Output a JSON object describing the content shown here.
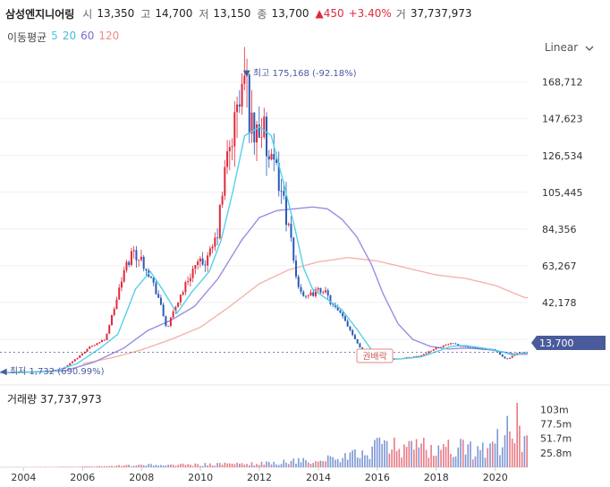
{
  "stock": {
    "name": "삼성엔지니어링",
    "open_label": "시",
    "open": "13,350",
    "high_label": "고",
    "high": "14,700",
    "low_label": "저",
    "low": "13,150",
    "close_label": "종",
    "close": "13,700",
    "change": "▲450",
    "change_pct": "+3.40%",
    "volume_label": "거",
    "volume": "37,737,973"
  },
  "ma": {
    "title": "이동평균",
    "items": [
      {
        "label": "5",
        "color": "#45c8e6"
      },
      {
        "label": "20",
        "color": "#4ab7d8"
      },
      {
        "label": "60",
        "color": "#7b6fd0"
      },
      {
        "label": "120",
        "color": "#f08a86"
      }
    ]
  },
  "scale_toggle": "Linear",
  "colors": {
    "up": "#e0293c",
    "down": "#2a5ab8",
    "ma20": "#55d0ea",
    "ma60": "#9b8de0",
    "ma120": "#f5b3ae",
    "accent": "#4a5b9c"
  },
  "annotations": {
    "high": "▼ 최고 175,168 (-92.18%)",
    "low": "◀ 최저 1,732 (690.99%)",
    "event": "권배락",
    "current": "13,700"
  },
  "volume_panel": {
    "title": "거래량 37,737,973"
  },
  "chart_data": {
    "type": "candlestick",
    "x_ticks": [
      "2004",
      "2006",
      "2008",
      "2010",
      "2012",
      "2014",
      "2016",
      "2018",
      "2020"
    ],
    "x_range": [
      2003.2,
      2021.1
    ],
    "y_ticks": [
      "168,712",
      "147,623",
      "126,534",
      "105,445",
      "84,356",
      "63,267",
      "42,178",
      "21,089"
    ],
    "y_range": [
      0,
      185000
    ],
    "vol_ticks": [
      "103m",
      "77.5m",
      "51.7m",
      "25.8m"
    ],
    "vol_range": [
      0,
      115000000
    ],
    "price_anchors": [
      [
        2003.2,
        1900
      ],
      [
        2004.0,
        2100
      ],
      [
        2004.8,
        2600
      ],
      [
        2005.4,
        4500
      ],
      [
        2005.9,
        11000
      ],
      [
        2006.3,
        17000
      ],
      [
        2006.8,
        21000
      ],
      [
        2007.1,
        38000
      ],
      [
        2007.45,
        60000
      ],
      [
        2007.75,
        72000
      ],
      [
        2008.2,
        63000
      ],
      [
        2008.6,
        46000
      ],
      [
        2008.9,
        27000
      ],
      [
        2009.3,
        44000
      ],
      [
        2009.8,
        62000
      ],
      [
        2010.3,
        67000
      ],
      [
        2010.6,
        80000
      ],
      [
        2010.9,
        120000
      ],
      [
        2011.2,
        145000
      ],
      [
        2011.55,
        172000
      ],
      [
        2011.8,
        140000
      ],
      [
        2012.1,
        145000
      ],
      [
        2012.4,
        120000
      ],
      [
        2012.7,
        114000
      ],
      [
        2013.0,
        88000
      ],
      [
        2013.3,
        55000
      ],
      [
        2013.6,
        44000
      ],
      [
        2013.9,
        48000
      ],
      [
        2014.2,
        50000
      ],
      [
        2014.5,
        41000
      ],
      [
        2014.9,
        33000
      ],
      [
        2015.3,
        21000
      ],
      [
        2015.6,
        12000
      ],
      [
        2016.0,
        10500
      ],
      [
        2016.5,
        9500
      ],
      [
        2017.0,
        10500
      ],
      [
        2017.5,
        11500
      ],
      [
        2018.0,
        16000
      ],
      [
        2018.5,
        18500
      ],
      [
        2019.0,
        17000
      ],
      [
        2019.5,
        15500
      ],
      [
        2020.0,
        15000
      ],
      [
        2020.4,
        9500
      ],
      [
        2020.8,
        13000
      ],
      [
        2021.0,
        13700
      ]
    ],
    "ma20_anchors": [
      [
        2003.2,
        1900
      ],
      [
        2005.0,
        2500
      ],
      [
        2005.8,
        7000
      ],
      [
        2006.6,
        16000
      ],
      [
        2007.2,
        24000
      ],
      [
        2007.8,
        50000
      ],
      [
        2008.3,
        60000
      ],
      [
        2008.7,
        50000
      ],
      [
        2009.2,
        36000
      ],
      [
        2009.7,
        48000
      ],
      [
        2010.3,
        60000
      ],
      [
        2010.7,
        78000
      ],
      [
        2011.1,
        106000
      ],
      [
        2011.5,
        138000
      ],
      [
        2012.0,
        143000
      ],
      [
        2012.4,
        138000
      ],
      [
        2012.8,
        112000
      ],
      [
        2013.2,
        85000
      ],
      [
        2013.5,
        62000
      ],
      [
        2013.8,
        50000
      ],
      [
        2014.3,
        44000
      ],
      [
        2014.8,
        38000
      ],
      [
        2015.3,
        27000
      ],
      [
        2015.8,
        15000
      ],
      [
        2016.3,
        10000
      ],
      [
        2016.8,
        9800
      ],
      [
        2017.5,
        11000
      ],
      [
        2018.0,
        14000
      ],
      [
        2018.5,
        17000
      ],
      [
        2019.0,
        17500
      ],
      [
        2019.6,
        16000
      ],
      [
        2020.2,
        14000
      ],
      [
        2020.6,
        12000
      ],
      [
        2021.0,
        13200
      ]
    ],
    "ma60_anchors": [
      [
        2003.2,
        1800
      ],
      [
        2005.4,
        3000
      ],
      [
        2006.4,
        8000
      ],
      [
        2007.4,
        16000
      ],
      [
        2008.2,
        26000
      ],
      [
        2009.0,
        32000
      ],
      [
        2009.8,
        40000
      ],
      [
        2010.6,
        56000
      ],
      [
        2011.4,
        78000
      ],
      [
        2012.0,
        91000
      ],
      [
        2012.6,
        95000
      ],
      [
        2013.2,
        96000
      ],
      [
        2013.8,
        97000
      ],
      [
        2014.3,
        96000
      ],
      [
        2014.8,
        90000
      ],
      [
        2015.3,
        80000
      ],
      [
        2015.8,
        64000
      ],
      [
        2016.2,
        47000
      ],
      [
        2016.7,
        30000
      ],
      [
        2017.2,
        21000
      ],
      [
        2017.8,
        17000
      ],
      [
        2018.4,
        15500
      ],
      [
        2019.0,
        16000
      ],
      [
        2019.6,
        15500
      ],
      [
        2020.2,
        14000
      ],
      [
        2020.7,
        12500
      ],
      [
        2021.0,
        12500
      ]
    ],
    "ma120_anchors": [
      [
        2006.0,
        7000
      ],
      [
        2007.0,
        10500
      ],
      [
        2008.0,
        15000
      ],
      [
        2009.0,
        21000
      ],
      [
        2010.0,
        28000
      ],
      [
        2011.0,
        40000
      ],
      [
        2012.0,
        53000
      ],
      [
        2013.0,
        61000
      ],
      [
        2014.0,
        65500
      ],
      [
        2015.0,
        68000
      ],
      [
        2016.0,
        66000
      ],
      [
        2017.0,
        62000
      ],
      [
        2018.0,
        58000
      ],
      [
        2019.0,
        56000
      ],
      [
        2020.0,
        52000
      ],
      [
        2021.0,
        45000
      ]
    ],
    "volume_anchors": [
      [
        2003.2,
        300000
      ],
      [
        2005.0,
        600000
      ],
      [
        2006.5,
        1500000
      ],
      [
        2008.0,
        4000000
      ],
      [
        2010.0,
        5000000
      ],
      [
        2012.0,
        7000000
      ],
      [
        2013.5,
        12000000
      ],
      [
        2015.0,
        18000000
      ],
      [
        2016.0,
        40000000
      ],
      [
        2017.0,
        35000000
      ],
      [
        2018.5,
        38000000
      ],
      [
        2019.5,
        30000000
      ],
      [
        2020.3,
        55000000
      ],
      [
        2020.7,
        105000000
      ],
      [
        2021.0,
        40000000
      ]
    ]
  }
}
